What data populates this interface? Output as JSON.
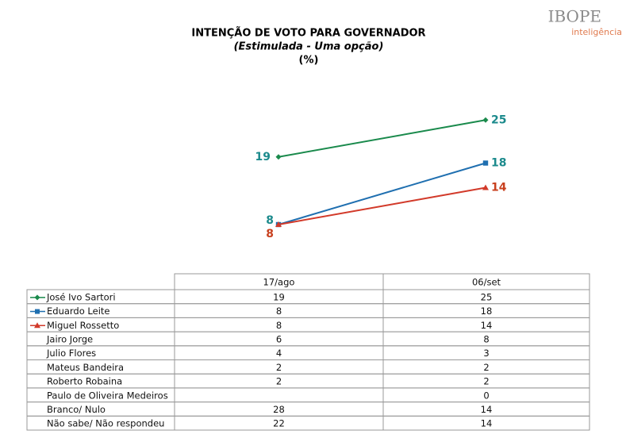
{
  "logo": {
    "name": "IBOPE",
    "tagline": "inteligência"
  },
  "chart_data": {
    "type": "line",
    "title": "INTENÇÃO DE VOTO PARA GOVERNADOR",
    "subtitle": "(Estimulada - Uma opção)",
    "unit": "(%)",
    "categories": [
      "17/ago",
      "06/set"
    ],
    "series": [
      {
        "name": "José Ivo Sartori",
        "color": "#1a8a4c",
        "label_color": "#1b8a8c",
        "marker": "diamond",
        "values": [
          19,
          25
        ]
      },
      {
        "name": "Eduardo Leite",
        "color": "#1f6fb0",
        "label_color": "#1b8a8c",
        "marker": "square",
        "values": [
          8,
          18
        ]
      },
      {
        "name": "Miguel Rossetto",
        "color": "#d23a2a",
        "label_color": "#c8401e",
        "marker": "triangle",
        "values": [
          8,
          14
        ]
      },
      {
        "name": "Jairo Jorge",
        "values": [
          6,
          8
        ]
      },
      {
        "name": "Julio Flores",
        "values": [
          4,
          3
        ]
      },
      {
        "name": "Mateus Bandeira",
        "values": [
          2,
          2
        ]
      },
      {
        "name": "Roberto Robaina",
        "values": [
          2,
          2
        ]
      },
      {
        "name": "Paulo de Oliveira Medeiros",
        "values": [
          null,
          0
        ]
      },
      {
        "name": "Branco/ Nulo",
        "values": [
          28,
          14
        ]
      },
      {
        "name": "Não sabe/ Não respondeu",
        "values": [
          22,
          14
        ]
      }
    ]
  }
}
